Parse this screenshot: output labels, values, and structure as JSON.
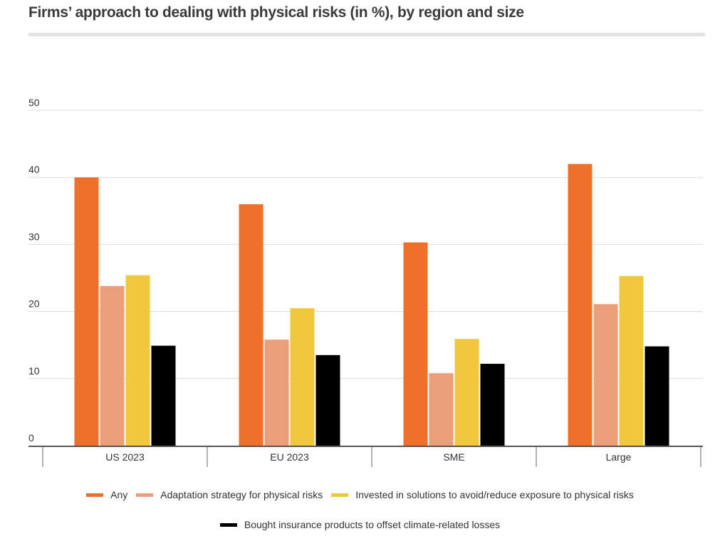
{
  "chart_data": {
    "type": "bar",
    "title": "Firms’ approach to dealing with physical risks (in %), by region and size",
    "xlabel": "",
    "ylabel": "",
    "ylim": [
      0,
      50
    ],
    "yticks": [
      0,
      10,
      20,
      30,
      40,
      50
    ],
    "grid": true,
    "legend_position": "bottom",
    "categories": [
      "US 2023",
      "EU 2023",
      "SME",
      "Large"
    ],
    "series": [
      {
        "name": "Any",
        "color": "#EE6F2A",
        "values": [
          40,
          36,
          30.3,
          42
        ]
      },
      {
        "name": "Adaptation strategy for physical risks",
        "color": "#EB9F78",
        "values": [
          23.8,
          15.8,
          10.8,
          21.1
        ]
      },
      {
        "name": "Invested in solutions to avoid/reduce exposure to physical risks",
        "color": "#EFC93B",
        "values": [
          25.4,
          20.5,
          15.9,
          25.3
        ]
      },
      {
        "name": "Bought insurance products to offset climate-related losses",
        "color": "#000000",
        "values": [
          14.9,
          13.5,
          12.2,
          14.8
        ]
      }
    ]
  }
}
